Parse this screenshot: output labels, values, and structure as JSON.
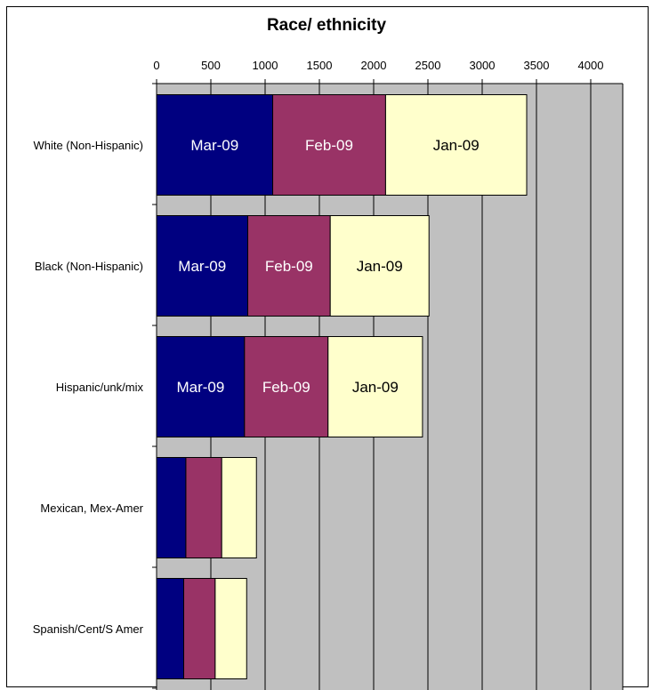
{
  "chart_data": {
    "type": "bar",
    "orientation": "horizontal",
    "stacked": true,
    "title": "Race/ ethnicity",
    "xlabel": "",
    "ylabel": "",
    "xlim": [
      0,
      4300
    ],
    "xticks": [
      0,
      500,
      1000,
      1500,
      2000,
      2500,
      3000,
      3500,
      4000
    ],
    "xaxis_position": "top",
    "grid": "vertical",
    "legend": "none",
    "categories": [
      "White (Non-Hispanic)",
      "Black (Non-Hispanic)",
      "Hispanic/unk/mix",
      "Mexican, Mex-Amer",
      "Spanish/Cent/S Amer"
    ],
    "series": [
      {
        "name": "Mar-09",
        "color": "#000080",
        "text_color": "#ffffff",
        "values": [
          1070,
          840,
          810,
          270,
          250
        ]
      },
      {
        "name": "Feb-09",
        "color": "#993366",
        "text_color": "#ffffff",
        "values": [
          1040,
          760,
          770,
          330,
          290
        ]
      },
      {
        "name": "Jan-09",
        "color": "#ffffcc",
        "text_color": "#000000",
        "values": [
          1300,
          910,
          870,
          320,
          290
        ]
      }
    ],
    "segment_labels_shown_for": [
      0,
      1,
      2
    ],
    "plot_background": "#c0c0c0",
    "gridline_color": "#000000"
  }
}
